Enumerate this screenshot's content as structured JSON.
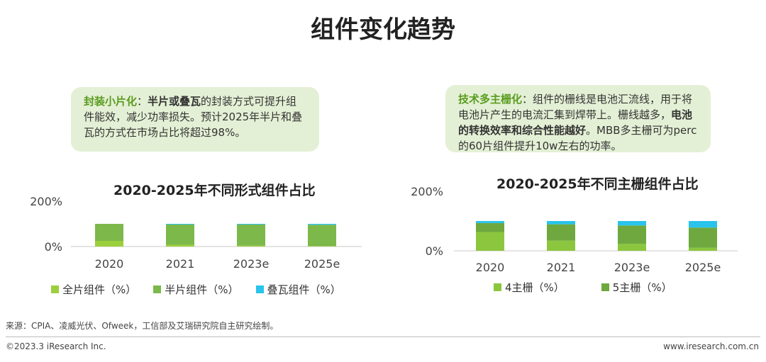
{
  "title": "组件变化趋势",
  "callouts": {
    "left": {
      "lead": "封装小片化",
      "colon": "：",
      "bold": "半片或叠瓦",
      "rest": "的封装方式可提升组件能效，减少功率损失。预计2025年半片和叠瓦的方式在市场占比将超过98%。"
    },
    "right": {
      "lead": "技术多主栅化",
      "text1": "：组件的栅线是电池汇流线，用于将电池片产生的电流汇集到焊带上。栅线越多，",
      "bold": "电池的转换效率和综合性能越好",
      "text2": "。MBB多主栅可为perc的60片组件提升10w左右的功率。"
    }
  },
  "chart_data": [
    {
      "type": "bar",
      "stacked": true,
      "title": "2020-2025年不同形式组件占比",
      "categories": [
        "2020",
        "2021",
        "2023e",
        "2025e"
      ],
      "ylim": [
        0,
        200
      ],
      "yticks": [
        "200%",
        "0%"
      ],
      "series": [
        {
          "name": "全片组件（%）",
          "color": "#9bcf3c",
          "values": [
            25,
            8,
            4,
            2
          ]
        },
        {
          "name": "半片组件（%）",
          "color": "#7cb84a",
          "values": [
            75,
            89,
            93,
            94
          ]
        },
        {
          "name": "叠瓦组件（%）",
          "color": "#29c3ec",
          "values": [
            0,
            3,
            3,
            4
          ]
        }
      ],
      "legend": "bottom"
    },
    {
      "type": "bar",
      "stacked": true,
      "title": "2020-2025年不同主栅组件占比",
      "categories": [
        "2020",
        "2021",
        "2023e",
        "2025e"
      ],
      "ylim": [
        0,
        200
      ],
      "yticks": [
        "200%",
        "0%"
      ],
      "series": [
        {
          "name": "4主栅（%）",
          "color": "#8bc63e",
          "values": [
            63,
            34,
            23,
            10
          ]
        },
        {
          "name": "5主栅（%）",
          "color": "#6ea83f",
          "values": [
            30,
            55,
            62,
            68
          ]
        },
        {
          "name": "",
          "color": "#29c3ec",
          "values": [
            7,
            11,
            15,
            22
          ]
        }
      ],
      "legend": "bottom"
    }
  ],
  "footer": {
    "source": "来源：CPIA、凌威光伏、Ofweek，工信部及艾瑞研究院自主研究绘制。",
    "copyright": "©2023.3 iResearch Inc.",
    "site": "www.iresearch.com.cn"
  }
}
